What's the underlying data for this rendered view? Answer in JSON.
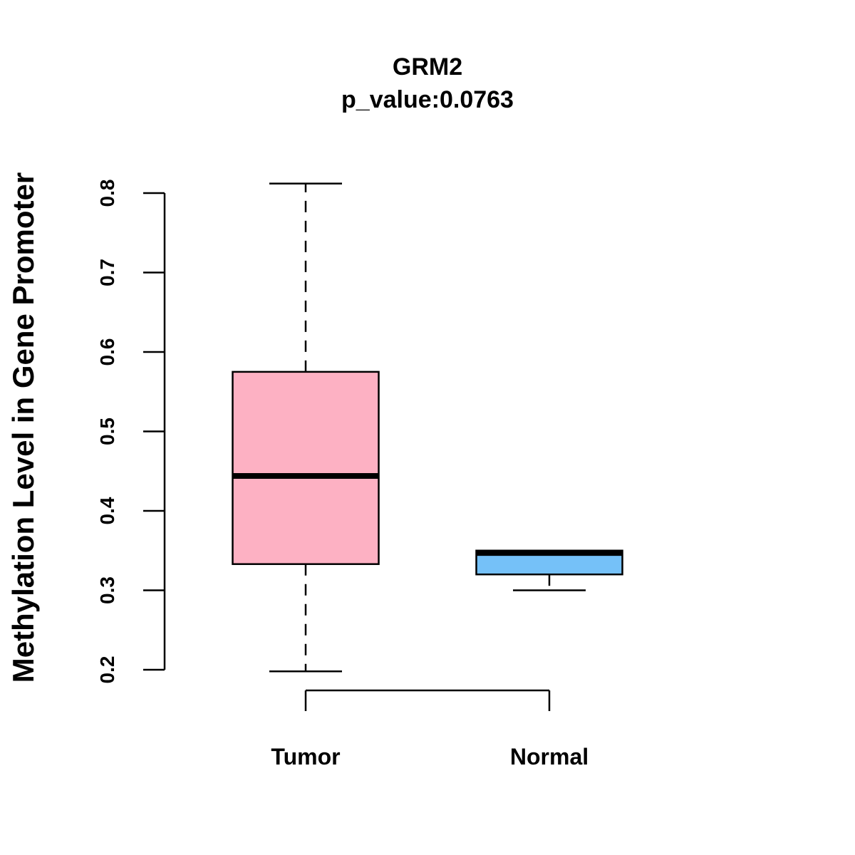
{
  "chart_data": {
    "type": "boxplot",
    "title": "GRM2",
    "subtitle": "p_value:0.0763",
    "xlabel": "",
    "ylabel": "Methylation Level in Gene Promoter",
    "ylim": [
      0.2,
      0.8
    ],
    "yticks": [
      0.2,
      0.3,
      0.4,
      0.5,
      0.6,
      0.7,
      0.8
    ],
    "ytick_labels": [
      "0.2",
      "0.3",
      "0.4",
      "0.5",
      "0.6",
      "0.7",
      "0.8"
    ],
    "grid": false,
    "categories": [
      "Tumor",
      "Normal"
    ],
    "series": [
      {
        "name": "Tumor",
        "color": "#FDB1C3",
        "min": 0.198,
        "q1": 0.333,
        "median": 0.444,
        "q3": 0.575,
        "max": 0.812
      },
      {
        "name": "Normal",
        "color": "#75C1F8",
        "min": 0.3,
        "q1": 0.32,
        "median": 0.347,
        "q3": 0.35,
        "max": 0.35
      }
    ]
  }
}
